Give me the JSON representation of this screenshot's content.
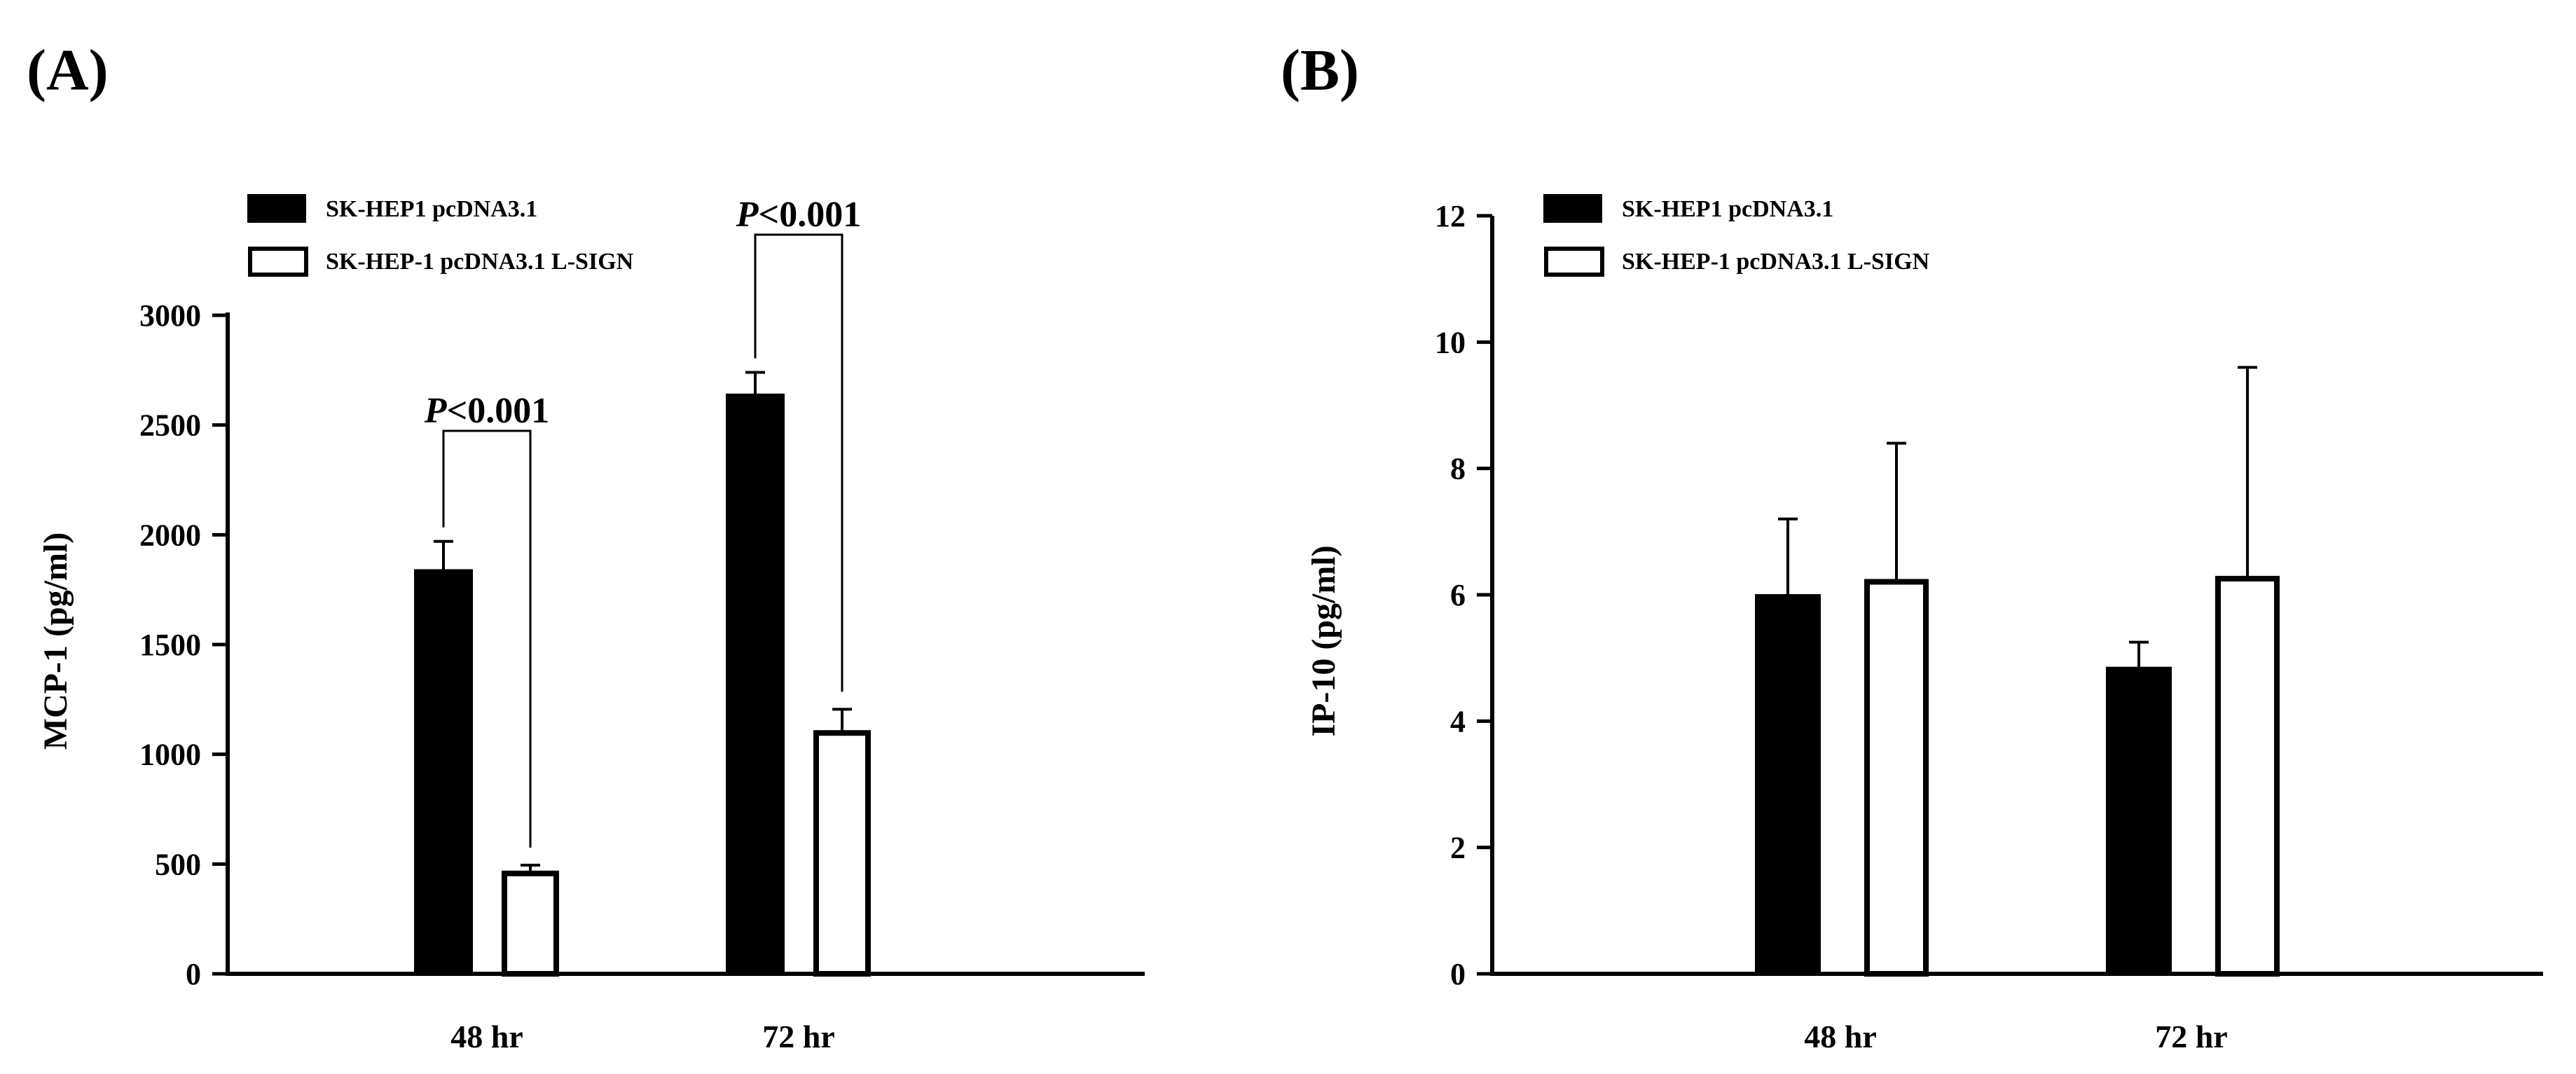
{
  "colors": {
    "filled": "#000000",
    "open": "#ffffff",
    "stroke": "#000000"
  },
  "legend": [
    "SK-HEP1 pcDNA3.1",
    "SK-HEP-1 pcDNA3.1 L-SIGN"
  ],
  "chart_data": [
    {
      "type": "bar",
      "panel_label": "(A)",
      "title": "",
      "xlabel": "",
      "ylabel": "MCP-1 (pg/ml)",
      "ylim": [
        0,
        3000
      ],
      "yticks": [
        0,
        500,
        1000,
        1500,
        2000,
        2500,
        3000
      ],
      "grid": false,
      "legend_position": "top-left",
      "categories": [
        "48 hr",
        "72 hr"
      ],
      "series": [
        {
          "name": "SK-HEP1 pcDNA3.1",
          "fill": "black",
          "values": [
            1840,
            2640
          ],
          "errors": [
            130,
            100
          ]
        },
        {
          "name": "SK-HEP-1 pcDNA3.1 L-SIGN",
          "fill": "white",
          "values": [
            470,
            1110
          ],
          "errors": [
            25,
            95
          ]
        }
      ],
      "annotations": [
        {
          "category_index": 0,
          "italic": "P",
          "text": "<0.001"
        },
        {
          "category_index": 1,
          "italic": "P",
          "text": "<0.001"
        }
      ]
    },
    {
      "type": "bar",
      "panel_label": "(B)",
      "title": "",
      "xlabel": "",
      "ylabel": "IP-10 (pg/ml)",
      "ylim": [
        0,
        12
      ],
      "yticks": [
        0,
        2,
        4,
        6,
        8,
        10,
        12
      ],
      "grid": false,
      "legend_position": "top-left",
      "categories": [
        "48 hr",
        "72 hr"
      ],
      "series": [
        {
          "name": "SK-HEP1 pcDNA3.1",
          "fill": "black",
          "values": [
            6.0,
            4.85
          ],
          "errors": [
            1.2,
            0.4
          ]
        },
        {
          "name": "SK-HEP-1 pcDNA3.1 L-SIGN",
          "fill": "white",
          "values": [
            6.25,
            6.3
          ],
          "errors": [
            2.15,
            3.3
          ]
        }
      ],
      "annotations": []
    }
  ]
}
